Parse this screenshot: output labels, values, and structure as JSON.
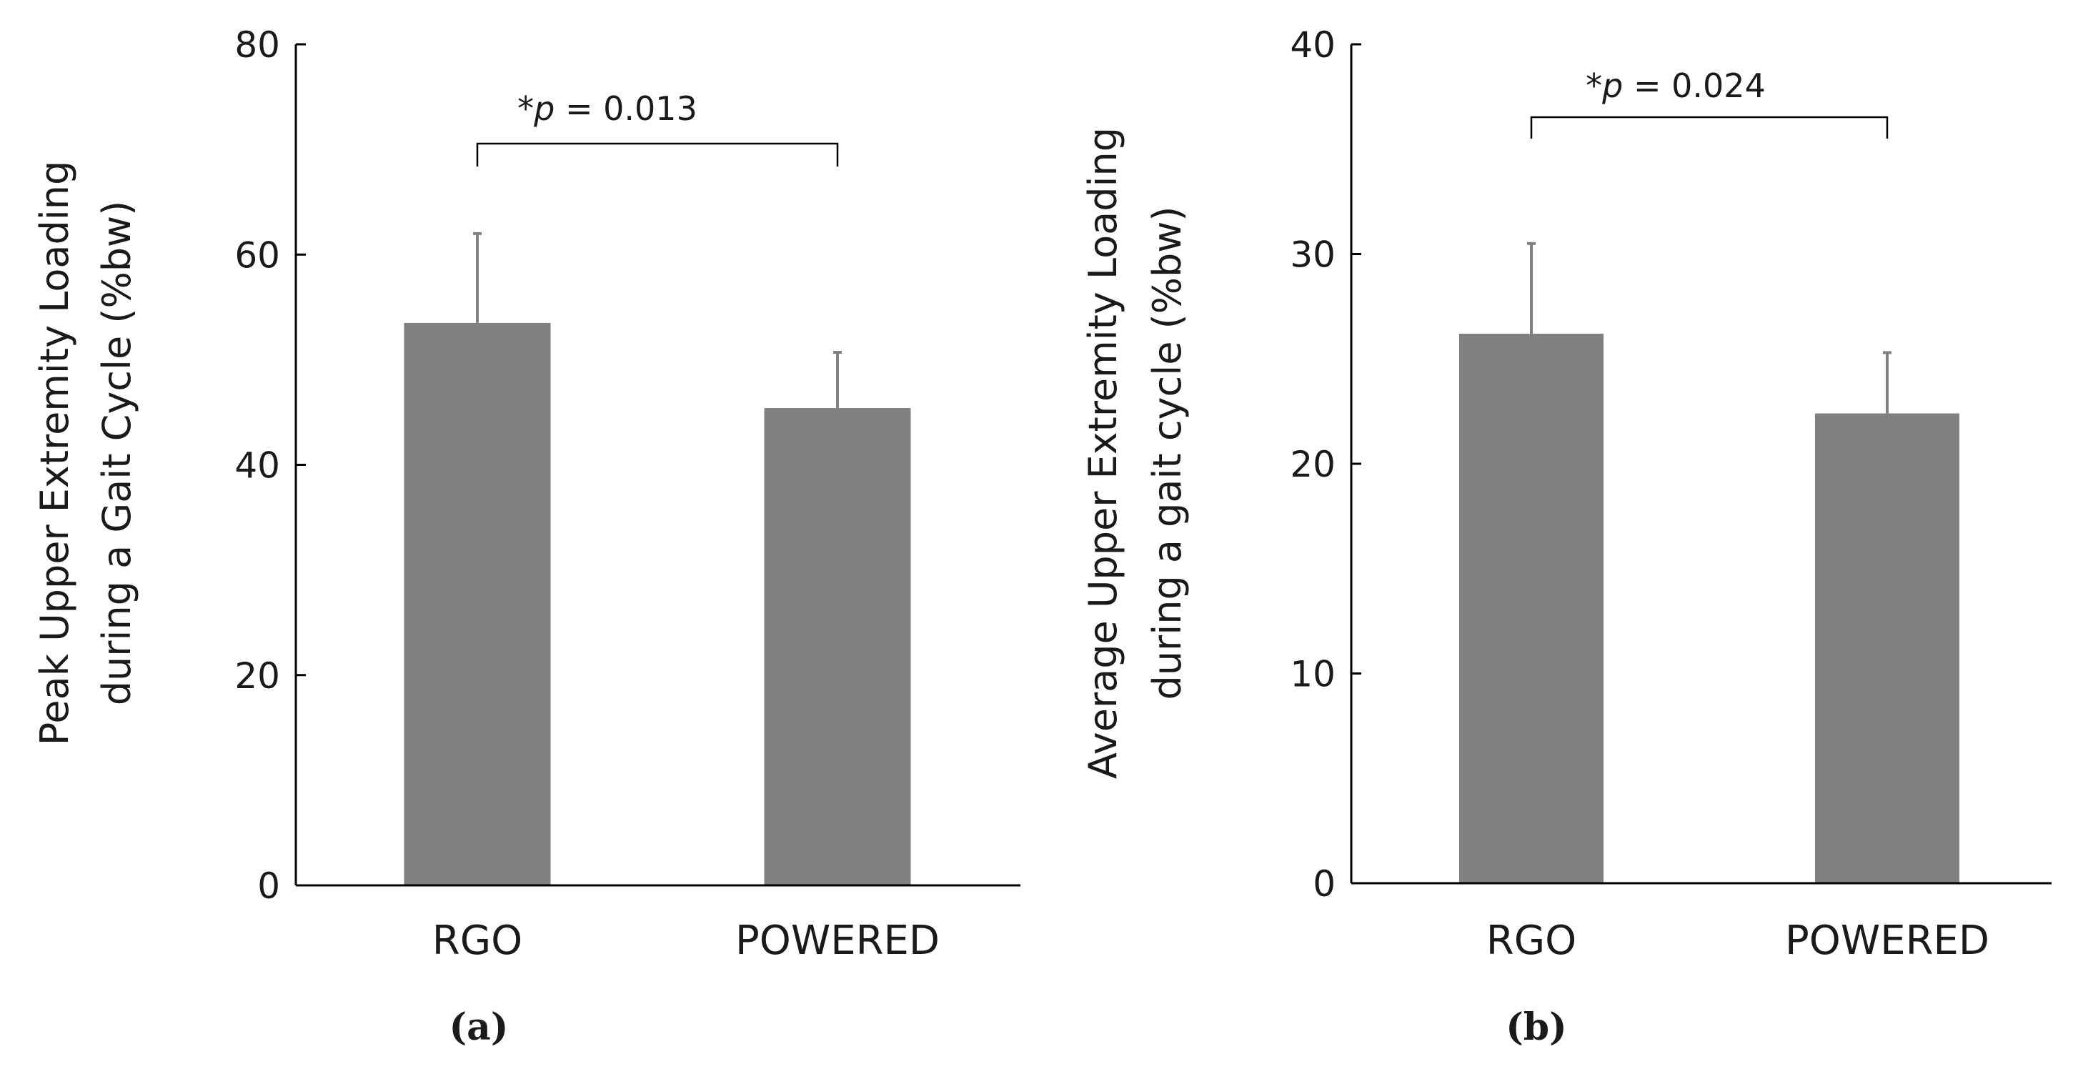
{
  "chart_data": [
    {
      "type": "bar",
      "panel_label": "(a)",
      "categories": [
        "RGO",
        "POWERED"
      ],
      "values": [
        53.5,
        45.4
      ],
      "error_upper": [
        62.0,
        50.7
      ],
      "ylabel_line1": "Peak Upper Extremity Loading",
      "ylabel_line2": "during a Gait Cycle (%bw)",
      "ylim": [
        0,
        80
      ],
      "yticks": [
        0,
        20,
        40,
        60,
        80
      ],
      "significance": {
        "prefix": "*",
        "italic": "p",
        "rest": " = 0.013"
      },
      "bar_color": "#808080"
    },
    {
      "type": "bar",
      "panel_label": "(b)",
      "categories": [
        "RGO",
        "POWERED"
      ],
      "values": [
        26.2,
        22.4
      ],
      "error_upper": [
        30.5,
        25.3
      ],
      "ylabel_line1": "Average Upper Extremity Loading",
      "ylabel_line2": "during a gait cycle (%bw)",
      "ylim": [
        0,
        40
      ],
      "yticks": [
        0,
        10,
        20,
        30,
        40
      ],
      "significance": {
        "prefix": "*",
        "italic": "p",
        "rest": " = 0.024"
      },
      "bar_color": "#808080"
    }
  ]
}
